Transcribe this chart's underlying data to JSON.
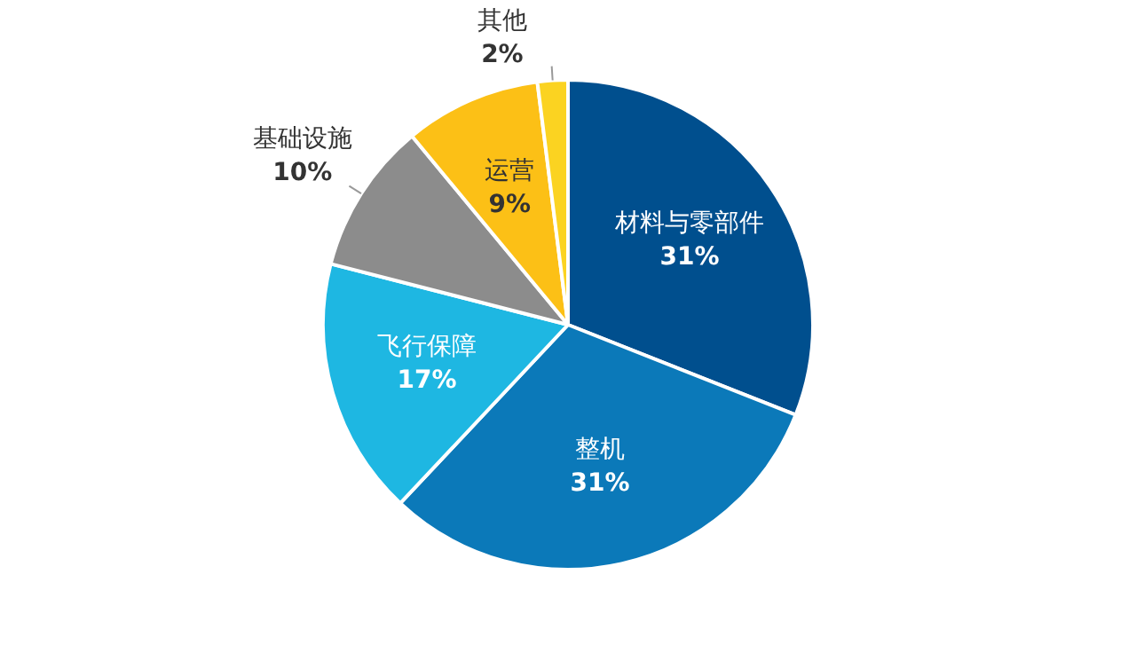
{
  "chart_data": {
    "type": "pie",
    "categories": [
      "材料与零部件",
      "整机",
      "飞行保障",
      "基础设施",
      "运营",
      "其他"
    ],
    "values": [
      31,
      31,
      17,
      10,
      9,
      2
    ],
    "value_labels": [
      "31%",
      "31%",
      "17%",
      "10%",
      "9%",
      "2%"
    ],
    "colors": [
      "#004f8e",
      "#0b79b9",
      "#1eb7e2",
      "#8c8c8c",
      "#fcc016",
      "#fbd321"
    ],
    "legend": false
  }
}
